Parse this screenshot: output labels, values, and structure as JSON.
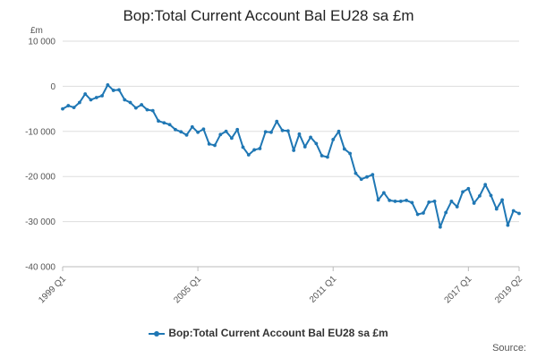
{
  "chart_data": {
    "type": "line",
    "title": "Bop:Total Current Account Bal EU28 sa £m",
    "unit_label": "£m",
    "ylabel": "",
    "xlabel": "",
    "ylim": [
      -40000,
      10000
    ],
    "yticks": [
      10000,
      0,
      -10000,
      -20000,
      -30000,
      -40000
    ],
    "ytick_labels": [
      "10 000",
      "0",
      "-10 000",
      "-20 000",
      "-30 000",
      "-40 000"
    ],
    "xtick_labels": [
      "1999 Q1",
      "2005 Q1",
      "2011 Q1",
      "2017 Q1",
      "2019 Q2"
    ],
    "xtick_index": [
      0,
      24,
      48,
      72,
      81
    ],
    "grid": "horizontal",
    "legend_position": "bottom",
    "series": [
      {
        "name": "Bop:Total Current Account Bal EU28 sa £m",
        "color": "#1f77b4",
        "values": [
          -5000,
          -4300,
          -4700,
          -3600,
          -1700,
          -3000,
          -2500,
          -2100,
          300,
          -900,
          -800,
          -3000,
          -3600,
          -4800,
          -4100,
          -5200,
          -5400,
          -7700,
          -8100,
          -8500,
          -9600,
          -10100,
          -10800,
          -9000,
          -10200,
          -9500,
          -12800,
          -13100,
          -10700,
          -10000,
          -11500,
          -9600,
          -13500,
          -15200,
          -14100,
          -13800,
          -10100,
          -10200,
          -7800,
          -9800,
          -9900,
          -14200,
          -10600,
          -13400,
          -11300,
          -12700,
          -15400,
          -15700,
          -11800,
          -10000,
          -13900,
          -14900,
          -19300,
          -20600,
          -20100,
          -19600,
          -25200,
          -23600,
          -25300,
          -25500,
          -25500,
          -25300,
          -25800,
          -28400,
          -28100,
          -25700,
          -25500,
          -31200,
          -28000,
          -25500,
          -26700,
          -23400,
          -22700,
          -25900,
          -24300,
          -21800,
          -24200,
          -27200,
          -25200,
          -30800,
          -27600,
          -28200
        ]
      }
    ]
  },
  "legend": {
    "label": "Bop:Total Current Account Bal EU28 sa £m"
  },
  "footer": {
    "source_label": "Source:"
  }
}
